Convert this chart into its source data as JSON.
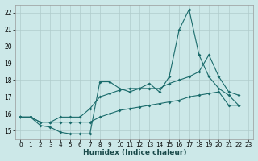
{
  "xlabel": "Humidex (Indice chaleur)",
  "bg_color": "#cce8e8",
  "grid_color": "#b0cccc",
  "line_color": "#1a6b6b",
  "xlim": [
    -0.5,
    23.5
  ],
  "ylim": [
    14.5,
    22.5
  ],
  "yticks": [
    15,
    16,
    17,
    18,
    19,
    20,
    21,
    22
  ],
  "xticks": [
    0,
    1,
    2,
    3,
    4,
    5,
    6,
    7,
    8,
    9,
    10,
    11,
    12,
    13,
    14,
    15,
    16,
    17,
    18,
    19,
    20,
    21,
    22,
    23
  ],
  "series": {
    "peak_line": {
      "x": [
        0,
        1,
        2,
        3,
        4,
        5,
        6,
        7,
        8,
        9,
        10,
        11,
        12,
        13,
        14,
        15,
        16,
        17,
        18,
        19,
        20,
        21,
        22
      ],
      "y": [
        15.8,
        15.8,
        15.3,
        15.2,
        14.9,
        14.8,
        14.8,
        14.8,
        17.9,
        17.9,
        17.5,
        17.3,
        17.5,
        17.8,
        17.3,
        18.2,
        21.0,
        22.2,
        19.5,
        18.2,
        17.5,
        17.1,
        16.5
      ]
    },
    "upper_mid_line": {
      "x": [
        0,
        1,
        2,
        3,
        4,
        5,
        6,
        7,
        8,
        9,
        10,
        11,
        12,
        13,
        14,
        15,
        16,
        17,
        18,
        19,
        20,
        21,
        22
      ],
      "y": [
        15.8,
        15.8,
        15.5,
        15.5,
        15.8,
        15.8,
        15.8,
        16.3,
        17.0,
        17.2,
        17.4,
        17.5,
        17.5,
        17.5,
        17.5,
        17.8,
        18.0,
        18.2,
        18.5,
        19.5,
        18.2,
        17.3,
        17.1
      ]
    },
    "lower_linear": {
      "x": [
        0,
        1,
        2,
        3,
        4,
        5,
        6,
        7,
        8,
        9,
        10,
        11,
        12,
        13,
        14,
        15,
        16,
        17,
        18,
        19,
        20,
        21,
        22
      ],
      "y": [
        15.8,
        15.8,
        15.5,
        15.5,
        15.5,
        15.5,
        15.5,
        15.5,
        15.8,
        16.0,
        16.2,
        16.3,
        16.4,
        16.5,
        16.6,
        16.7,
        16.8,
        17.0,
        17.1,
        17.2,
        17.3,
        16.5,
        16.5
      ]
    }
  }
}
